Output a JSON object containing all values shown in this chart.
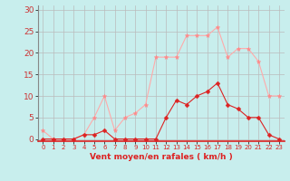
{
  "x": [
    0,
    1,
    2,
    3,
    4,
    5,
    6,
    7,
    8,
    9,
    10,
    11,
    12,
    13,
    14,
    15,
    16,
    17,
    18,
    19,
    20,
    21,
    22,
    23
  ],
  "wind_avg": [
    0,
    0,
    0,
    0,
    1,
    1,
    2,
    0,
    0,
    0,
    0,
    0,
    5,
    9,
    8,
    10,
    11,
    13,
    8,
    7,
    5,
    5,
    1,
    0
  ],
  "wind_gust": [
    2,
    0,
    0,
    0,
    1,
    5,
    10,
    2,
    5,
    6,
    8,
    19,
    19,
    19,
    24,
    24,
    24,
    26,
    19,
    21,
    21,
    18,
    10,
    10
  ],
  "bg_color": "#c8eeed",
  "grid_color": "#bbbbbb",
  "line_avg_color": "#dd2222",
  "line_gust_color": "#ffaaaa",
  "marker_avg_color": "#dd2222",
  "marker_gust_color": "#ff8888",
  "xlabel": "Vent moyen/en rafales ( km/h )",
  "xlabel_color": "#dd2222",
  "ytick_labels": [
    "0",
    "5",
    "10",
    "15",
    "20",
    "25",
    "30"
  ],
  "ytick_values": [
    0,
    5,
    10,
    15,
    20,
    25,
    30
  ],
  "ylim": [
    -0.5,
    31
  ],
  "xlim": [
    -0.5,
    23.5
  ]
}
